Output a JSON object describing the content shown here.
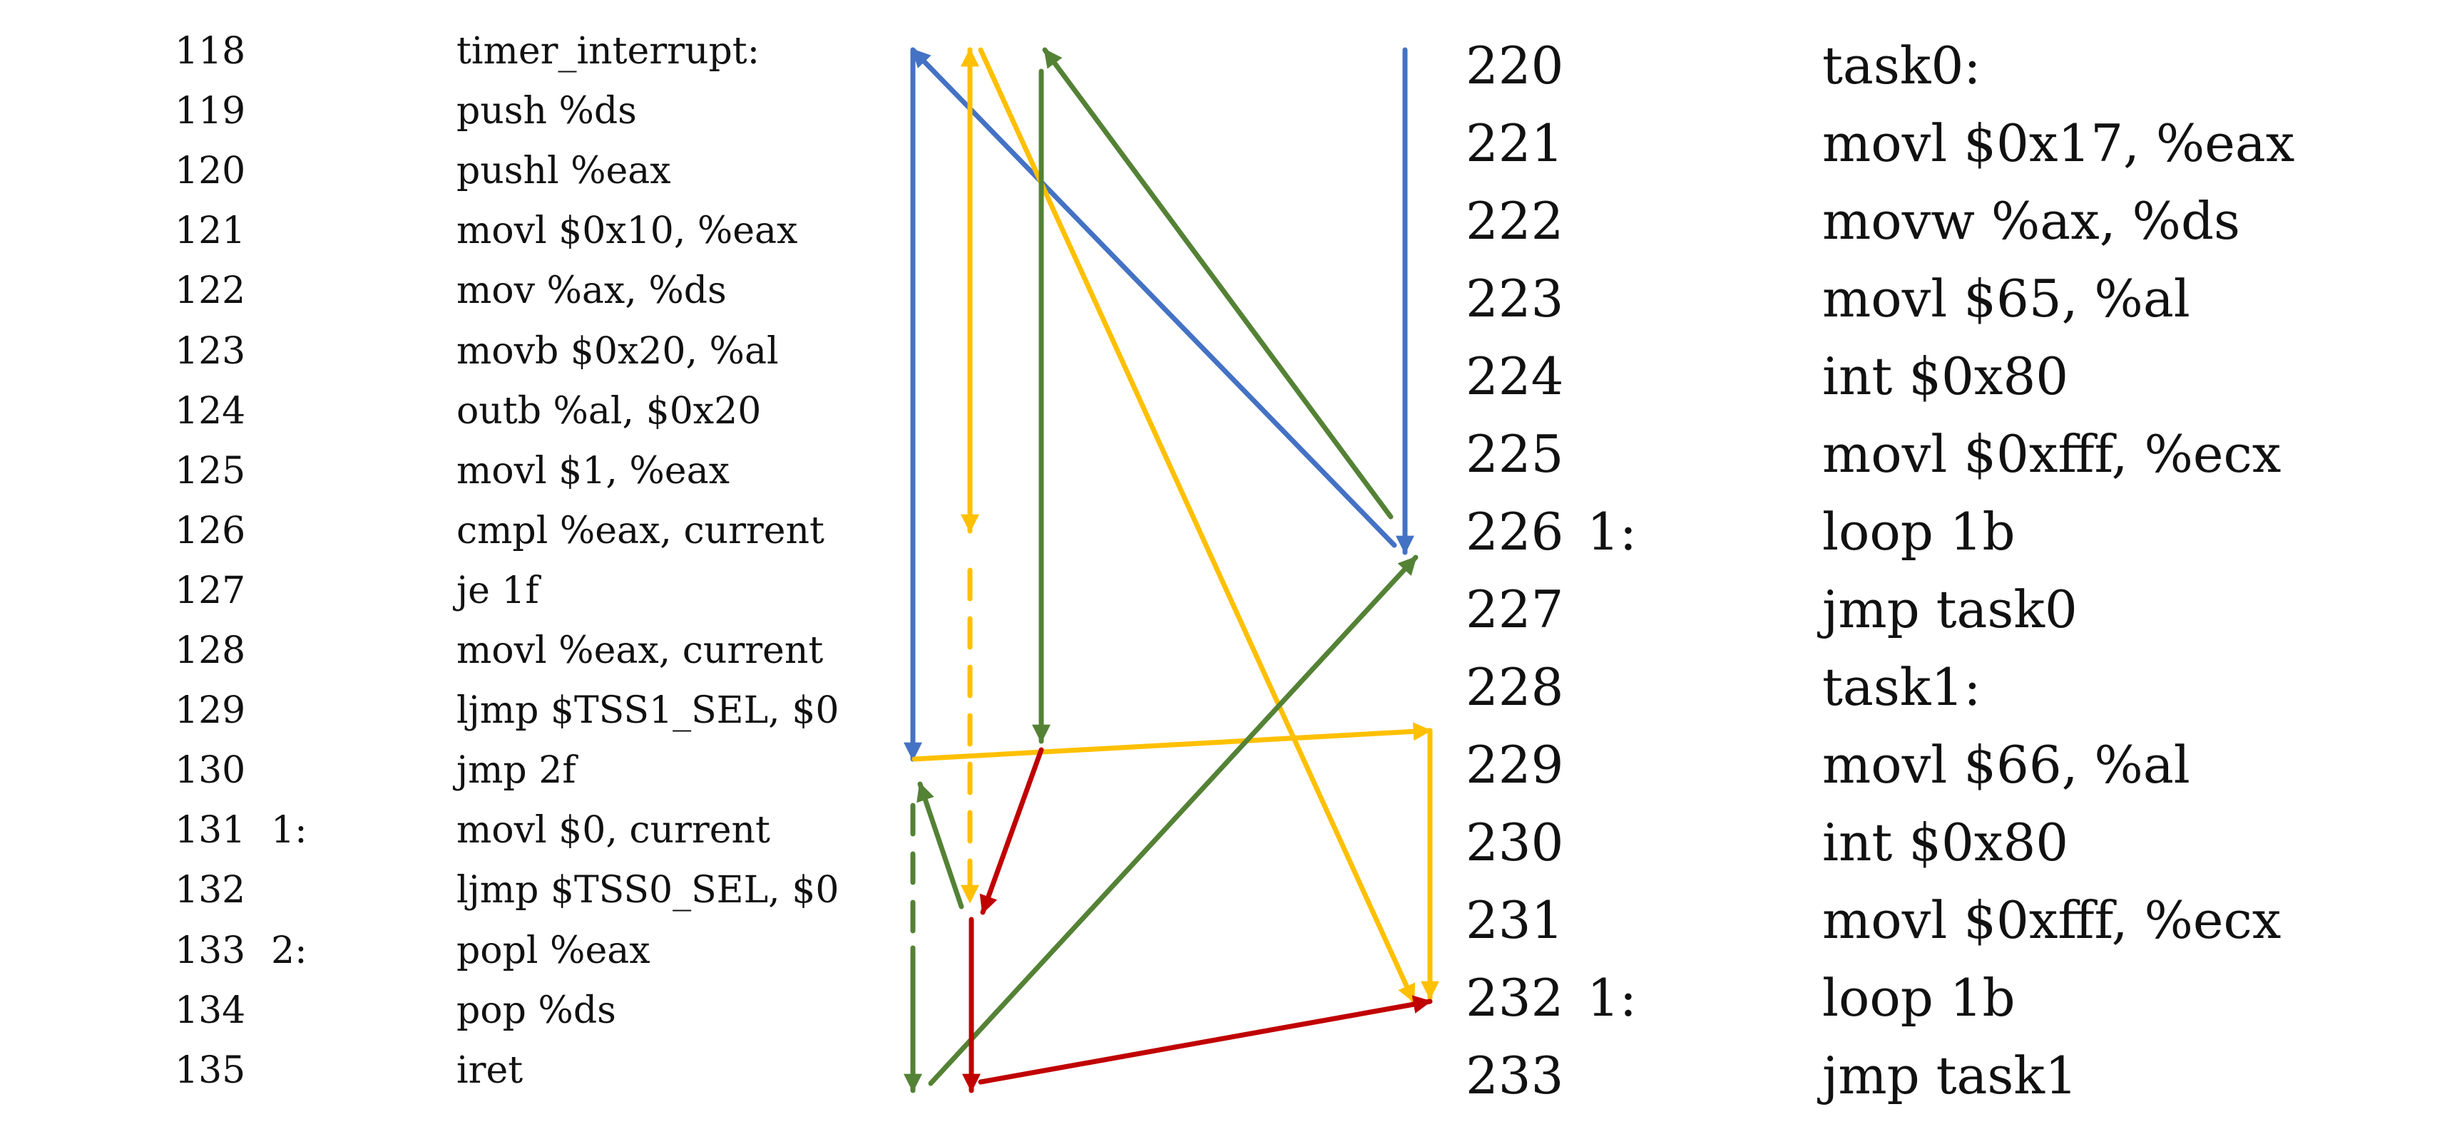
{
  "left_listing": [
    {
      "num": "118",
      "label": "",
      "code": "timer_interrupt:"
    },
    {
      "num": "119",
      "label": "",
      "code": "push %ds"
    },
    {
      "num": "120",
      "label": "",
      "code": "pushl %eax"
    },
    {
      "num": "121",
      "label": "",
      "code": "movl $0x10, %eax"
    },
    {
      "num": "122",
      "label": "",
      "code": "mov %ax, %ds"
    },
    {
      "num": "123",
      "label": "",
      "code": "movb $0x20, %al"
    },
    {
      "num": "124",
      "label": "",
      "code": "outb %al, $0x20"
    },
    {
      "num": "125",
      "label": "",
      "code": "movl $1, %eax"
    },
    {
      "num": "126",
      "label": "",
      "code": "cmpl %eax, current"
    },
    {
      "num": "127",
      "label": "",
      "code": "je 1f"
    },
    {
      "num": "128",
      "label": "",
      "code": "movl %eax, current"
    },
    {
      "num": "129",
      "label": "",
      "code": "ljmp $TSS1_SEL, $0"
    },
    {
      "num": "130",
      "label": "",
      "code": "jmp 2f"
    },
    {
      "num": "131",
      "label": "1:",
      "code": "movl $0, current"
    },
    {
      "num": "132",
      "label": "",
      "code": "ljmp $TSS0_SEL, $0"
    },
    {
      "num": "133",
      "label": "2:",
      "code": "popl %eax"
    },
    {
      "num": "134",
      "label": "",
      "code": "pop %ds"
    },
    {
      "num": "135",
      "label": "",
      "code": "iret"
    }
  ],
  "right_listing": [
    {
      "num": "220",
      "label": "",
      "code": "task0:"
    },
    {
      "num": "221",
      "label": "",
      "code": "movl $0x17, %eax"
    },
    {
      "num": "222",
      "label": "",
      "code": "movw %ax, %ds"
    },
    {
      "num": "223",
      "label": "",
      "code": "movl $65, %al"
    },
    {
      "num": "224",
      "label": "",
      "code": "int $0x80"
    },
    {
      "num": "225",
      "label": "",
      "code": "movl $0xfff, %ecx"
    },
    {
      "num": "226",
      "label": "1:",
      "code": "loop 1b"
    },
    {
      "num": "227",
      "label": "",
      "code": "jmp task0"
    },
    {
      "num": "228",
      "label": "",
      "code": "task1:"
    },
    {
      "num": "229",
      "label": "",
      "code": "movl $66, %al"
    },
    {
      "num": "230",
      "label": "",
      "code": "int $0x80"
    },
    {
      "num": "231",
      "label": "",
      "code": "movl $0xfff, %ecx"
    },
    {
      "num": "232",
      "label": "1:",
      "code": "loop 1b"
    },
    {
      "num": "233",
      "label": "",
      "code": "jmp task1"
    }
  ],
  "colors": {
    "blue": "#4472c4",
    "yellow": "#ffc000",
    "green": "#548235",
    "red": "#c00000"
  }
}
